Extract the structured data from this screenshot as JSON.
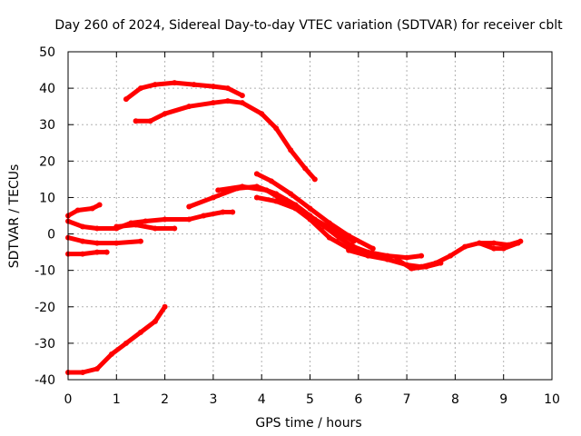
{
  "chart_data": {
    "type": "scatter",
    "title": "Day 260 of 2024, Sidereal Day-to-day VTEC variation (SDTVAR) for receiver cblt",
    "xlabel": "GPS time / hours",
    "ylabel": "SDTVAR / TECUs",
    "xlim": [
      0,
      10
    ],
    "ylim": [
      -40,
      50
    ],
    "xticks": [
      0,
      1,
      2,
      3,
      4,
      5,
      6,
      7,
      8,
      9,
      10
    ],
    "yticks": [
      -40,
      -30,
      -20,
      -10,
      0,
      10,
      20,
      30,
      40,
      50
    ],
    "grid": true,
    "marker_color": "#ff0000",
    "series": [
      {
        "name": "track-1",
        "points": [
          [
            0.0,
            -38
          ],
          [
            0.3,
            -38
          ],
          [
            0.6,
            -37
          ],
          [
            0.9,
            -33
          ],
          [
            1.2,
            -30
          ],
          [
            1.5,
            -27
          ],
          [
            1.8,
            -24
          ],
          [
            2.0,
            -20
          ]
        ]
      },
      {
        "name": "track-2",
        "points": [
          [
            0.0,
            5
          ],
          [
            0.2,
            6.5
          ],
          [
            0.5,
            7
          ],
          [
            0.65,
            8
          ]
        ]
      },
      {
        "name": "track-3",
        "points": [
          [
            0.0,
            3.5
          ],
          [
            0.3,
            2
          ],
          [
            0.6,
            1.5
          ],
          [
            1.0,
            1.5
          ],
          [
            1.3,
            3
          ],
          [
            1.6,
            3.5
          ],
          [
            2.0,
            4
          ],
          [
            2.5,
            4
          ],
          [
            2.8,
            5
          ],
          [
            3.2,
            6
          ],
          [
            3.4,
            6
          ]
        ]
      },
      {
        "name": "track-4",
        "points": [
          [
            0.0,
            -1
          ],
          [
            0.3,
            -2
          ],
          [
            0.6,
            -2.5
          ],
          [
            1.0,
            -2.5
          ],
          [
            1.5,
            -2
          ]
        ]
      },
      {
        "name": "track-5",
        "points": [
          [
            0.0,
            -5.5
          ],
          [
            0.3,
            -5.5
          ],
          [
            0.6,
            -5
          ],
          [
            0.8,
            -5
          ]
        ]
      },
      {
        "name": "track-6",
        "points": [
          [
            1.0,
            2
          ],
          [
            1.4,
            2.5
          ],
          [
            1.8,
            1.5
          ],
          [
            2.2,
            1.5
          ]
        ]
      },
      {
        "name": "track-7",
        "points": [
          [
            1.2,
            37
          ],
          [
            1.5,
            40
          ],
          [
            1.8,
            41
          ],
          [
            2.2,
            41.5
          ],
          [
            2.6,
            41
          ],
          [
            3.0,
            40.5
          ],
          [
            3.3,
            40
          ],
          [
            3.6,
            38
          ]
        ]
      },
      {
        "name": "track-8",
        "points": [
          [
            1.4,
            31
          ],
          [
            1.7,
            31
          ],
          [
            2.0,
            33
          ],
          [
            2.5,
            35
          ],
          [
            3.0,
            36
          ],
          [
            3.3,
            36.5
          ],
          [
            3.6,
            36
          ],
          [
            4.0,
            33
          ],
          [
            4.3,
            29
          ],
          [
            4.6,
            23
          ],
          [
            4.9,
            18
          ],
          [
            5.1,
            15
          ]
        ]
      },
      {
        "name": "track-9",
        "points": [
          [
            2.5,
            7.5
          ],
          [
            3.0,
            10
          ],
          [
            3.5,
            12.5
          ],
          [
            3.9,
            13
          ],
          [
            4.3,
            11
          ],
          [
            4.7,
            8
          ],
          [
            5.0,
            5
          ],
          [
            5.3,
            2
          ],
          [
            5.6,
            -1
          ],
          [
            5.9,
            -3.5
          ],
          [
            6.2,
            -5
          ],
          [
            6.6,
            -6
          ],
          [
            7.0,
            -6.5
          ],
          [
            7.3,
            -6
          ]
        ]
      },
      {
        "name": "track-10",
        "points": [
          [
            3.1,
            12
          ],
          [
            3.6,
            13
          ],
          [
            4.1,
            12
          ],
          [
            4.6,
            8
          ],
          [
            5.0,
            4
          ],
          [
            5.4,
            -1
          ],
          [
            5.8,
            -4
          ],
          [
            6.2,
            -5.5
          ]
        ]
      },
      {
        "name": "track-11",
        "points": [
          [
            3.9,
            16.5
          ],
          [
            4.2,
            14.5
          ],
          [
            4.6,
            11
          ],
          [
            5.0,
            7
          ],
          [
            5.4,
            3
          ],
          [
            5.8,
            -0.5
          ],
          [
            6.3,
            -4
          ]
        ]
      },
      {
        "name": "track-12",
        "points": [
          [
            3.9,
            10
          ],
          [
            4.3,
            9
          ],
          [
            4.7,
            7
          ],
          [
            5.1,
            4
          ],
          [
            5.5,
            1
          ],
          [
            5.9,
            -2
          ]
        ]
      },
      {
        "name": "track-13",
        "points": [
          [
            5.8,
            -4.5
          ],
          [
            6.2,
            -6
          ],
          [
            6.6,
            -7
          ],
          [
            7.0,
            -8.5
          ],
          [
            7.3,
            -9
          ],
          [
            7.6,
            -8
          ],
          [
            7.9,
            -6
          ],
          [
            8.2,
            -3.5
          ],
          [
            8.5,
            -2.5
          ],
          [
            8.8,
            -2.5
          ],
          [
            9.1,
            -3
          ],
          [
            9.35,
            -2
          ]
        ]
      },
      {
        "name": "track-14",
        "points": [
          [
            6.8,
            -7
          ],
          [
            7.1,
            -9.5
          ],
          [
            7.4,
            -9
          ],
          [
            7.7,
            -8
          ]
        ]
      },
      {
        "name": "track-15",
        "points": [
          [
            8.5,
            -2.5
          ],
          [
            8.8,
            -4
          ],
          [
            9.0,
            -4
          ],
          [
            9.3,
            -2.5
          ]
        ]
      }
    ]
  }
}
